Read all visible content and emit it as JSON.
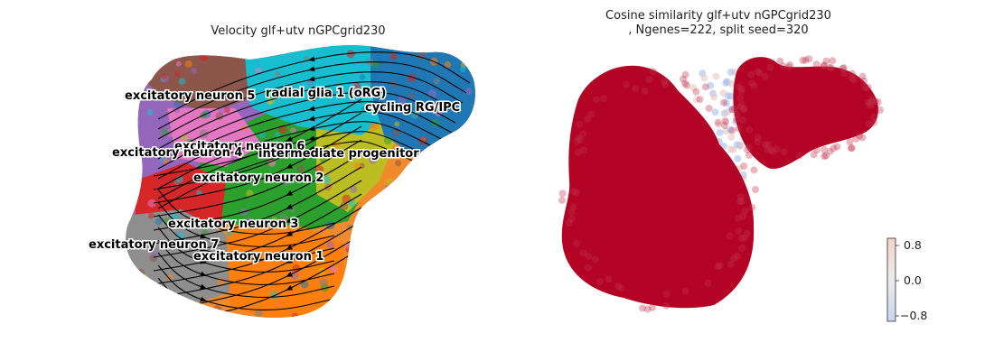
{
  "chart_data": [
    {
      "type": "scatter",
      "title": "Velocity glf+utv nGPCgrid230",
      "embedding": "umap",
      "overlay": "velocity streamlines (black arrows)",
      "axes_visible": false,
      "grid": false,
      "clusters": [
        {
          "label": "radial glia 1 (oRG)",
          "color": "#17becf"
        },
        {
          "label": "cycling RG/IPC",
          "color": "#1f77b4"
        },
        {
          "label": "intermediate progenitor",
          "color": "#bcbd22"
        },
        {
          "label": "excitatory neuron 1",
          "color": "#ff7f0e"
        },
        {
          "label": "excitatory neuron 2",
          "color": "#2ca02c"
        },
        {
          "label": "excitatory neuron 3",
          "color": "#d62728"
        },
        {
          "label": "excitatory neuron 4",
          "color": "#9467bd"
        },
        {
          "label": "excitatory neuron 5",
          "color": "#8c564b"
        },
        {
          "label": "excitatory neuron 6",
          "color": "#e377c2"
        },
        {
          "label": "excitatory neuron 7",
          "color": "#7f7f7f"
        }
      ]
    },
    {
      "type": "scatter",
      "title": "Cosine similarity glf+utv nGPCgrid230\n, Ngenes=222, split seed=320",
      "embedding": "umap",
      "axes_visible": false,
      "grid": false,
      "colormap": "coolwarm",
      "dominant_color": "#b40426",
      "colorbar": {
        "ticks": [
          0.8,
          0.0,
          -0.8
        ],
        "tick_labels": [
          "0.8",
          "0.0",
          "−0.8"
        ],
        "range": [
          -1,
          1
        ],
        "location": "lower-right"
      }
    }
  ]
}
